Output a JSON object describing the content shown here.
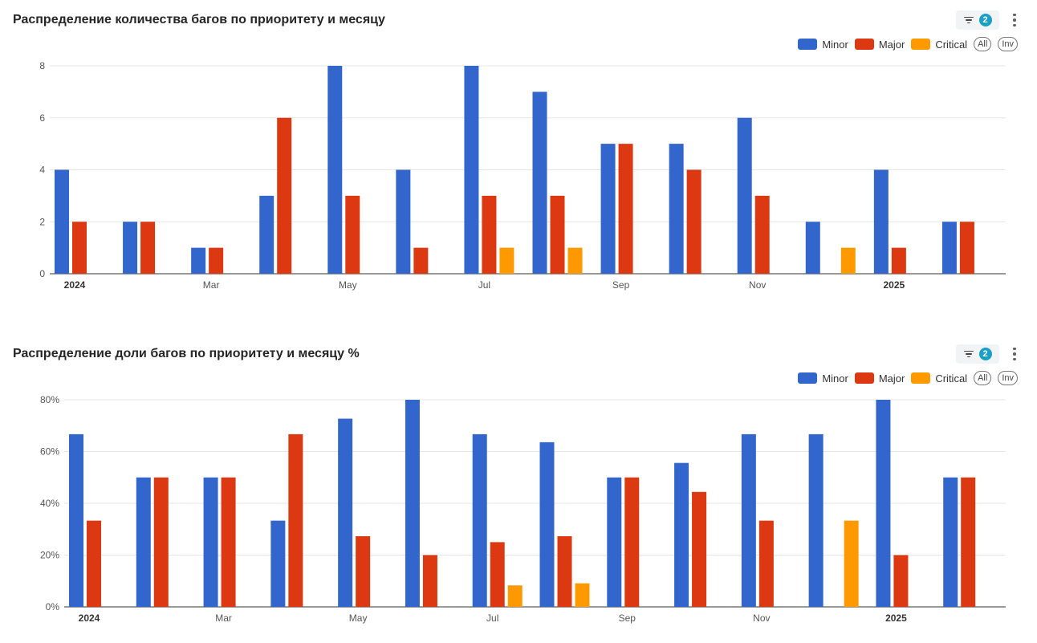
{
  "colors": {
    "Minor": "#3366cc",
    "Major": "#dc3912",
    "Critical": "#ff9900"
  },
  "legend_controls": {
    "all": "All",
    "inv": "Inv"
  },
  "charts": [
    {
      "title": "Распределение количества багов по приоритету и месяцу",
      "filter_count": "2",
      "legend": [
        "Minor",
        "Major",
        "Critical"
      ]
    },
    {
      "title": "Распределение доли багов по приоритету и месяцу %",
      "filter_count": "2",
      "legend": [
        "Minor",
        "Major",
        "Critical"
      ]
    }
  ],
  "chart_data": [
    {
      "type": "bar",
      "title": "Распределение количества багов по приоритету и месяцу",
      "categories": [
        "2024-01",
        "2024-02",
        "2024-03",
        "2024-04",
        "2024-05",
        "2024-06",
        "2024-07",
        "2024-08",
        "2024-09",
        "2024-10",
        "2024-11",
        "2024-12",
        "2025-01",
        "2025-02"
      ],
      "tick_labels": [
        "2024",
        "",
        "Mar",
        "",
        "May",
        "",
        "Jul",
        "",
        "Sep",
        "",
        "Nov",
        "",
        "2025",
        ""
      ],
      "bold_ticks": [
        "2024",
        "2025"
      ],
      "series": [
        {
          "name": "Minor",
          "values": [
            4,
            2,
            1,
            3,
            8,
            4,
            8,
            7,
            5,
            5,
            6,
            2,
            4,
            2
          ]
        },
        {
          "name": "Major",
          "values": [
            2,
            2,
            1,
            6,
            3,
            1,
            3,
            3,
            5,
            4,
            3,
            0,
            1,
            2
          ]
        },
        {
          "name": "Critical",
          "values": [
            0,
            0,
            0,
            0,
            0,
            0,
            1,
            1,
            0,
            0,
            0,
            1,
            0,
            0
          ]
        }
      ],
      "ylim": [
        0,
        8
      ],
      "yticks": [
        "0",
        "2",
        "4",
        "6",
        "8"
      ],
      "grid": true,
      "legend_position": "top-right"
    },
    {
      "type": "bar",
      "title": "Распределение доли багов по приоритету и месяцу %",
      "categories": [
        "2024-01",
        "2024-02",
        "2024-03",
        "2024-04",
        "2024-05",
        "2024-06",
        "2024-07",
        "2024-08",
        "2024-09",
        "2024-10",
        "2024-11",
        "2024-12",
        "2025-01",
        "2025-02"
      ],
      "tick_labels": [
        "2024",
        "",
        "Mar",
        "",
        "May",
        "",
        "Jul",
        "",
        "Sep",
        "",
        "Nov",
        "",
        "2025",
        ""
      ],
      "bold_ticks": [
        "2024",
        "2025"
      ],
      "series": [
        {
          "name": "Minor",
          "values": [
            66.7,
            50,
            50,
            33.3,
            72.7,
            80,
            66.7,
            63.6,
            50,
            55.6,
            66.7,
            66.7,
            80,
            50
          ]
        },
        {
          "name": "Major",
          "values": [
            33.3,
            50,
            50,
            66.7,
            27.3,
            20,
            25,
            27.3,
            50,
            44.4,
            33.3,
            0,
            20,
            50
          ]
        },
        {
          "name": "Critical",
          "values": [
            0,
            0,
            0,
            0,
            0,
            0,
            8.3,
            9.1,
            0,
            0,
            0,
            33.3,
            0,
            0
          ]
        }
      ],
      "ylim": [
        0,
        80
      ],
      "yticks": [
        "0%",
        "20%",
        "40%",
        "60%",
        "80%"
      ],
      "grid": true,
      "legend_position": "top-right"
    }
  ]
}
